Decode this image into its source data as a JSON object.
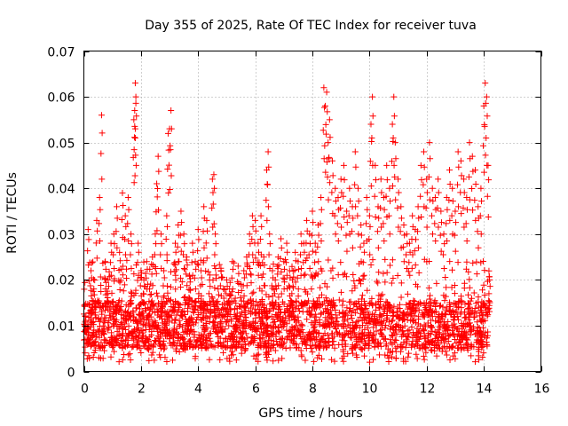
{
  "chart_data": {
    "type": "scatter",
    "title": "Day 355 of 2025, Rate Of TEC Index for receiver tuva",
    "xlabel": "GPS time / hours",
    "ylabel": "ROTI / TECUs",
    "xlim": [
      0,
      16
    ],
    "ylim": [
      0,
      0.07
    ],
    "x_ticks": [
      0,
      2,
      4,
      6,
      8,
      10,
      12,
      14,
      16
    ],
    "x_tick_labels": [
      "0",
      "2",
      "4",
      "6",
      "8",
      "10",
      "12",
      "14",
      "16"
    ],
    "y_ticks": [
      0,
      0.01,
      0.02,
      0.03,
      0.04,
      0.05,
      0.06,
      0.07
    ],
    "y_tick_labels": [
      "0",
      "0.01",
      "0.02",
      "0.03",
      "0.04",
      "0.05",
      "0.06",
      "0.07"
    ],
    "grid": true,
    "marker": "+",
    "color": "#ff0000",
    "data_x_range": [
      0,
      14.2
    ],
    "series": [
      {
        "name": "ROTI",
        "points": [
          [
            0.05,
            0.012
          ],
          [
            0.15,
            0.031
          ],
          [
            0.25,
            0.022
          ],
          [
            0.35,
            0.018
          ],
          [
            0.45,
            0.033
          ],
          [
            0.55,
            0.038
          ],
          [
            0.62,
            0.056
          ],
          [
            0.75,
            0.024
          ],
          [
            0.85,
            0.02
          ],
          [
            0.95,
            0.028
          ],
          [
            1.05,
            0.03
          ],
          [
            1.15,
            0.036
          ],
          [
            1.25,
            0.026
          ],
          [
            1.35,
            0.039
          ],
          [
            1.45,
            0.034
          ],
          [
            1.55,
            0.038
          ],
          [
            1.65,
            0.03
          ],
          [
            1.75,
            0.055
          ],
          [
            1.78,
            0.057
          ],
          [
            1.8,
            0.063
          ],
          [
            1.82,
            0.06
          ],
          [
            1.9,
            0.028
          ],
          [
            2.0,
            0.022
          ],
          [
            2.1,
            0.02
          ],
          [
            2.2,
            0.024
          ],
          [
            2.3,
            0.018
          ],
          [
            2.4,
            0.025
          ],
          [
            2.5,
            0.03
          ],
          [
            2.55,
            0.041
          ],
          [
            2.6,
            0.047
          ],
          [
            2.7,
            0.03
          ],
          [
            2.8,
            0.022
          ],
          [
            2.9,
            0.034
          ],
          [
            2.95,
            0.052
          ],
          [
            3.0,
            0.053
          ],
          [
            3.05,
            0.057
          ],
          [
            3.2,
            0.028
          ],
          [
            3.3,
            0.032
          ],
          [
            3.4,
            0.035
          ],
          [
            3.5,
            0.03
          ],
          [
            3.6,
            0.025
          ],
          [
            3.7,
            0.021
          ],
          [
            3.8,
            0.028
          ],
          [
            3.9,
            0.024
          ],
          [
            4.0,
            0.031
          ],
          [
            4.1,
            0.022
          ],
          [
            4.2,
            0.036
          ],
          [
            4.3,
            0.033
          ],
          [
            4.4,
            0.02
          ],
          [
            4.5,
            0.042
          ],
          [
            4.55,
            0.043
          ],
          [
            4.6,
            0.03
          ],
          [
            4.7,
            0.018
          ],
          [
            4.8,
            0.022
          ],
          [
            4.9,
            0.016
          ],
          [
            5.0,
            0.02
          ],
          [
            5.1,
            0.018
          ],
          [
            5.2,
            0.024
          ],
          [
            5.3,
            0.016
          ],
          [
            5.4,
            0.023
          ],
          [
            5.5,
            0.019
          ],
          [
            5.6,
            0.022
          ],
          [
            5.7,
            0.025
          ],
          [
            5.8,
            0.03
          ],
          [
            5.9,
            0.034
          ],
          [
            6.0,
            0.033
          ],
          [
            6.1,
            0.028
          ],
          [
            6.2,
            0.034
          ],
          [
            6.3,
            0.025
          ],
          [
            6.4,
            0.044
          ],
          [
            6.45,
            0.048
          ],
          [
            6.5,
            0.03
          ],
          [
            6.6,
            0.022
          ],
          [
            6.7,
            0.02
          ],
          [
            6.8,
            0.025
          ],
          [
            6.9,
            0.029
          ],
          [
            7.0,
            0.024
          ],
          [
            7.1,
            0.028
          ],
          [
            7.2,
            0.022
          ],
          [
            7.3,
            0.02
          ],
          [
            7.4,
            0.026
          ],
          [
            7.5,
            0.024
          ],
          [
            7.6,
            0.03
          ],
          [
            7.7,
            0.028
          ],
          [
            7.8,
            0.033
          ],
          [
            7.9,
            0.03
          ],
          [
            8.0,
            0.035
          ],
          [
            8.1,
            0.028
          ],
          [
            8.2,
            0.032
          ],
          [
            8.3,
            0.038
          ],
          [
            8.4,
            0.062
          ],
          [
            8.45,
            0.058
          ],
          [
            8.5,
            0.061
          ],
          [
            8.55,
            0.05
          ],
          [
            8.6,
            0.055
          ],
          [
            8.7,
            0.046
          ],
          [
            8.8,
            0.04
          ],
          [
            8.9,
            0.038
          ],
          [
            9.0,
            0.042
          ],
          [
            9.1,
            0.045
          ],
          [
            9.2,
            0.035
          ],
          [
            9.3,
            0.04
          ],
          [
            9.4,
            0.036
          ],
          [
            9.5,
            0.048
          ],
          [
            9.6,
            0.04
          ],
          [
            9.7,
            0.032
          ],
          [
            9.8,
            0.028
          ],
          [
            9.9,
            0.038
          ],
          [
            10.0,
            0.034
          ],
          [
            10.05,
            0.054
          ],
          [
            10.1,
            0.06
          ],
          [
            10.2,
            0.045
          ],
          [
            10.3,
            0.036
          ],
          [
            10.4,
            0.042
          ],
          [
            10.5,
            0.038
          ],
          [
            10.6,
            0.045
          ],
          [
            10.7,
            0.04
          ],
          [
            10.8,
            0.054
          ],
          [
            10.85,
            0.06
          ],
          [
            10.9,
            0.05
          ],
          [
            11.0,
            0.042
          ],
          [
            11.1,
            0.036
          ],
          [
            11.2,
            0.032
          ],
          [
            11.3,
            0.03
          ],
          [
            11.4,
            0.028
          ],
          [
            11.5,
            0.034
          ],
          [
            11.6,
            0.031
          ],
          [
            11.7,
            0.036
          ],
          [
            11.8,
            0.045
          ],
          [
            11.9,
            0.048
          ],
          [
            12.0,
            0.042
          ],
          [
            12.1,
            0.05
          ],
          [
            12.2,
            0.04
          ],
          [
            12.3,
            0.038
          ],
          [
            12.4,
            0.042
          ],
          [
            12.5,
            0.035
          ],
          [
            12.6,
            0.03
          ],
          [
            12.7,
            0.038
          ],
          [
            12.8,
            0.044
          ],
          [
            12.9,
            0.04
          ],
          [
            13.0,
            0.035
          ],
          [
            13.1,
            0.048
          ],
          [
            13.2,
            0.046
          ],
          [
            13.3,
            0.042
          ],
          [
            13.4,
            0.038
          ],
          [
            13.5,
            0.05
          ],
          [
            13.6,
            0.047
          ],
          [
            13.7,
            0.044
          ],
          [
            13.8,
            0.036
          ],
          [
            13.9,
            0.04
          ],
          [
            14.0,
            0.058
          ],
          [
            14.05,
            0.063
          ],
          [
            14.1,
            0.06
          ],
          [
            14.15,
            0.045
          ],
          [
            14.2,
            0.02
          ]
        ]
      }
    ],
    "dense_band": {
      "description_free": true,
      "x_from": 0,
      "x_to": 14.2,
      "y_min": 0.002,
      "y_typical_low": 0.005,
      "y_typical_high": 0.02,
      "count": 2600
    }
  }
}
